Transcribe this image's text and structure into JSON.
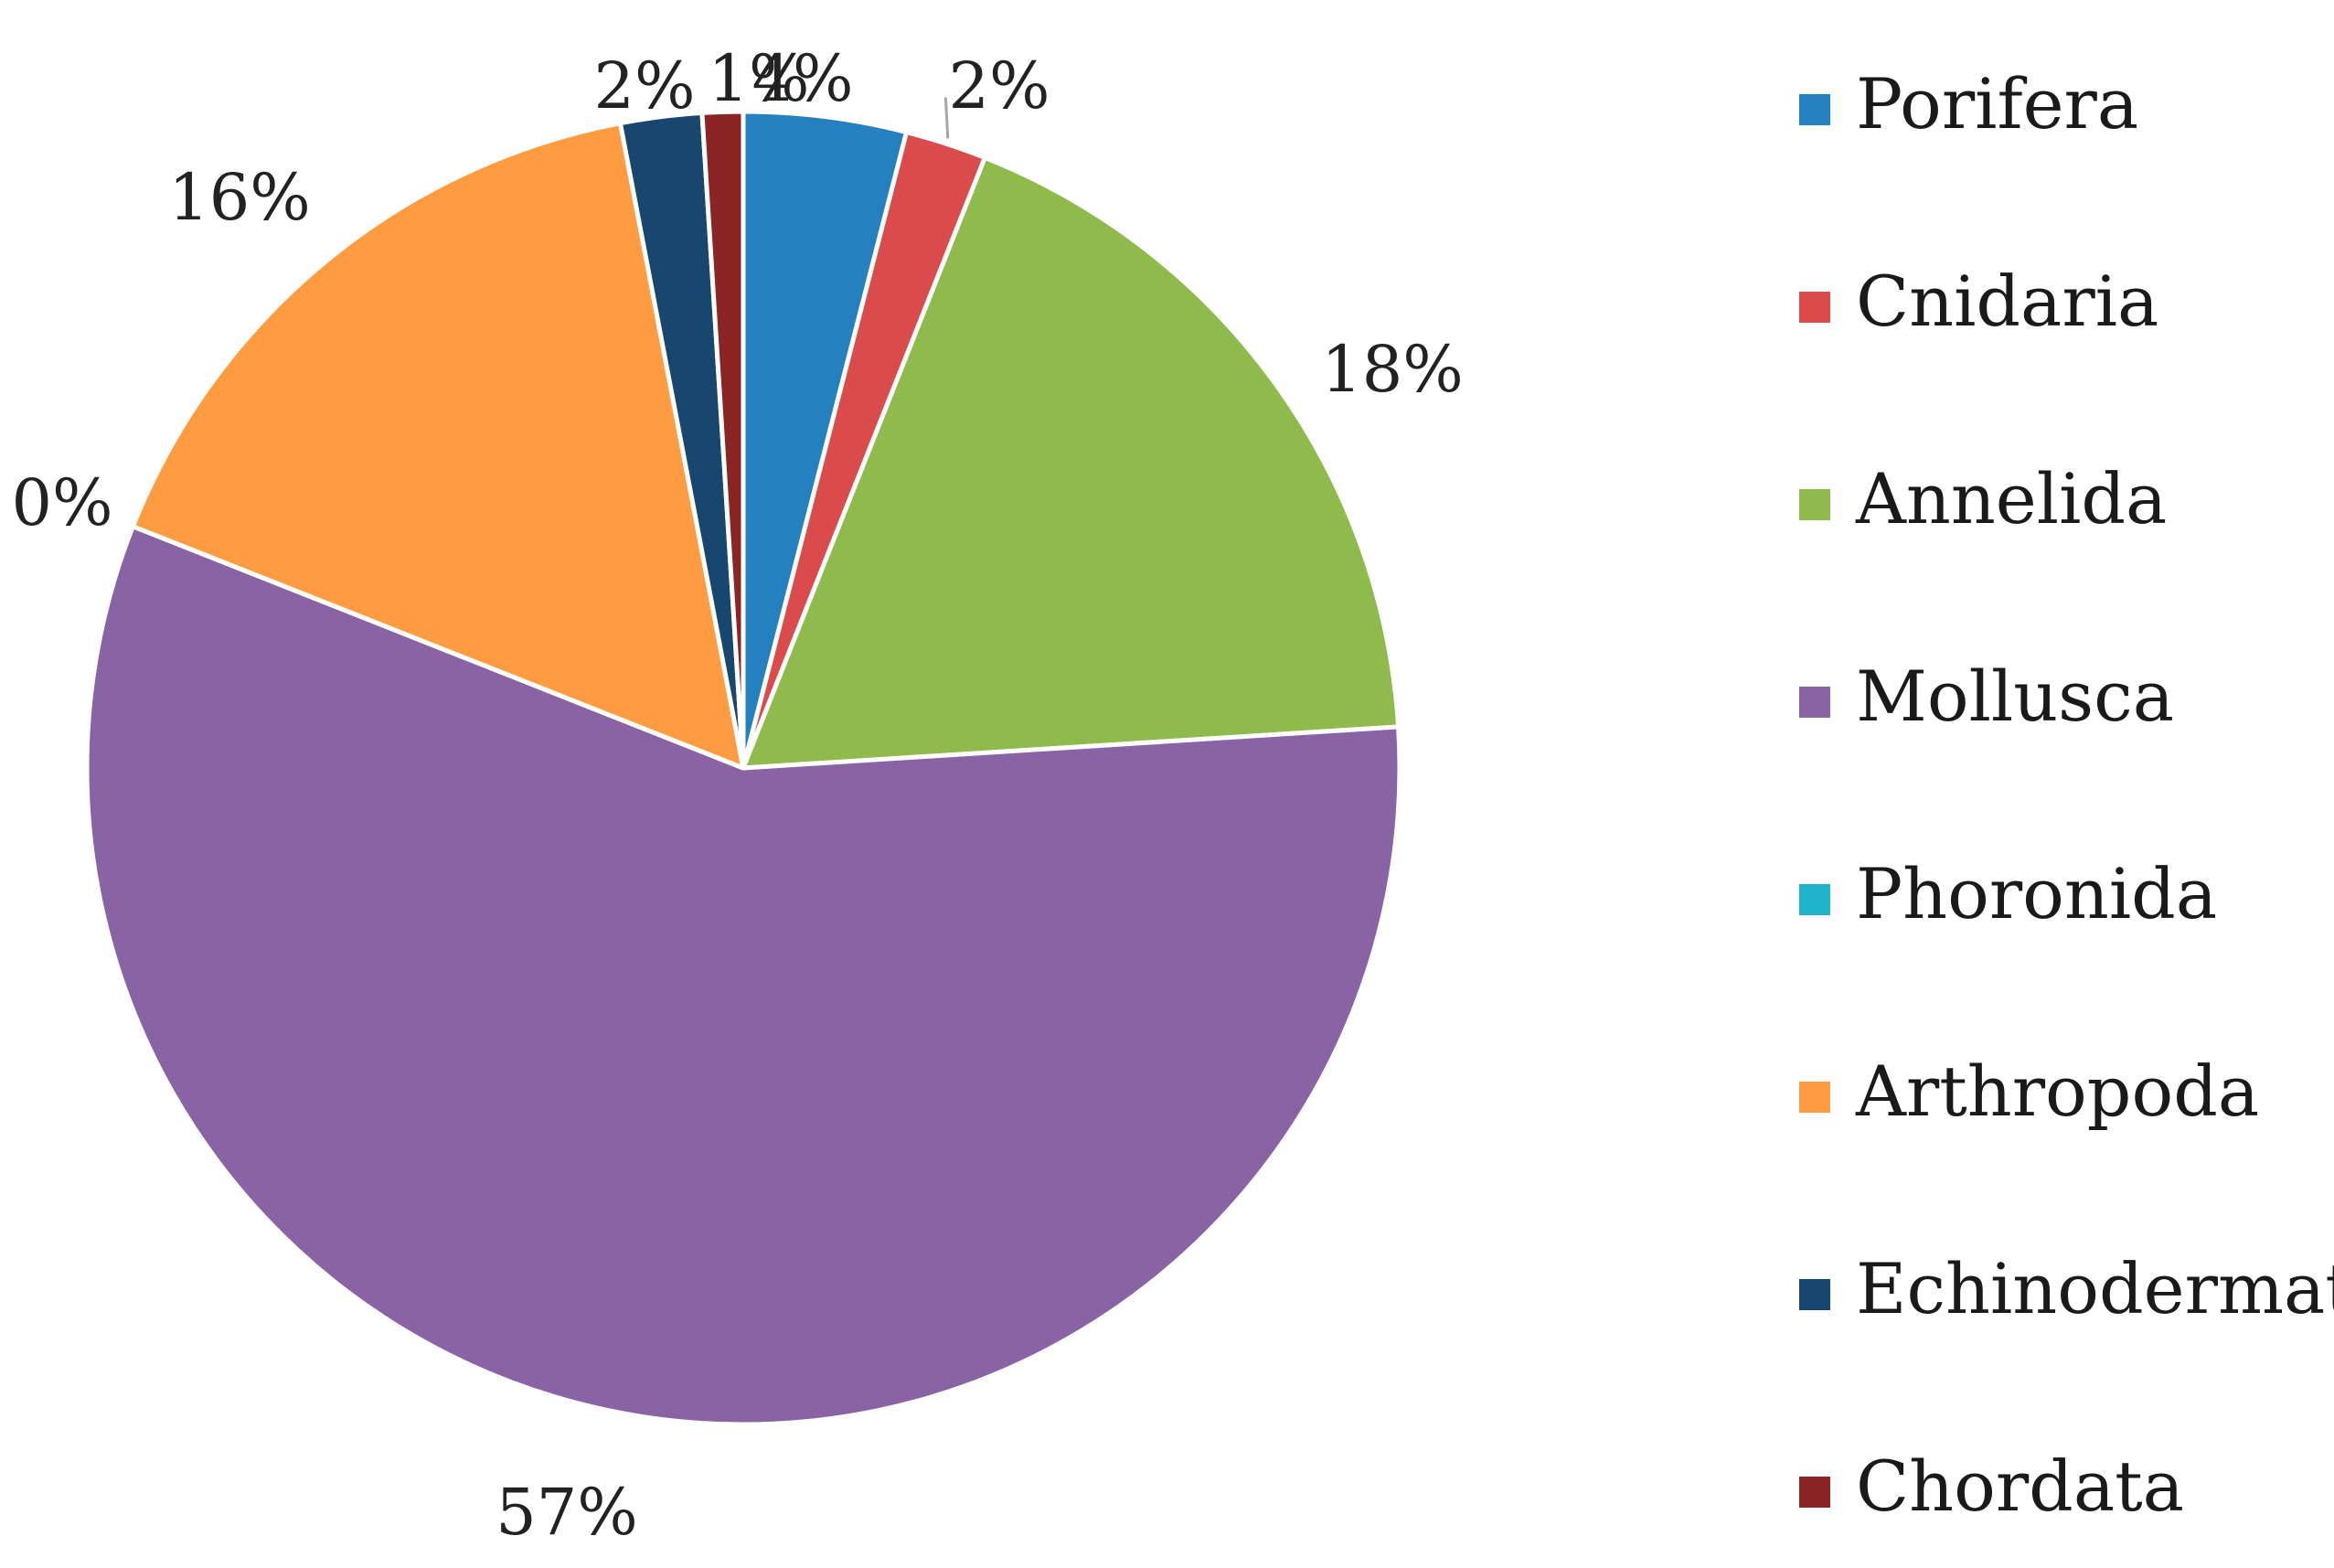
{
  "chart_data": {
    "type": "pie",
    "title": "",
    "legend_position": "right",
    "slices": [
      {
        "name": "Porifera",
        "value": 4,
        "label": "4%",
        "color": "#2580C0"
      },
      {
        "name": "Cnidaria",
        "value": 2,
        "label": "2%",
        "color": "#DA4B4B"
      },
      {
        "name": "Annelida",
        "value": 18,
        "label": "18%",
        "color": "#8FBB4C"
      },
      {
        "name": "Mollusca",
        "value": 57,
        "label": "57%",
        "color": "#8A63A5"
      },
      {
        "name": "Phoronida",
        "value": 0,
        "label": "0%",
        "color": "#1FB3CC"
      },
      {
        "name": "Arthropoda",
        "value": 16,
        "label": "16%",
        "color": "#FF9B40"
      },
      {
        "name": "Echinodermata",
        "value": 2,
        "label": "2%",
        "color": "#17466E"
      },
      {
        "name": "Chordata",
        "value": 1,
        "label": "1%",
        "color": "#8B2424"
      }
    ]
  }
}
